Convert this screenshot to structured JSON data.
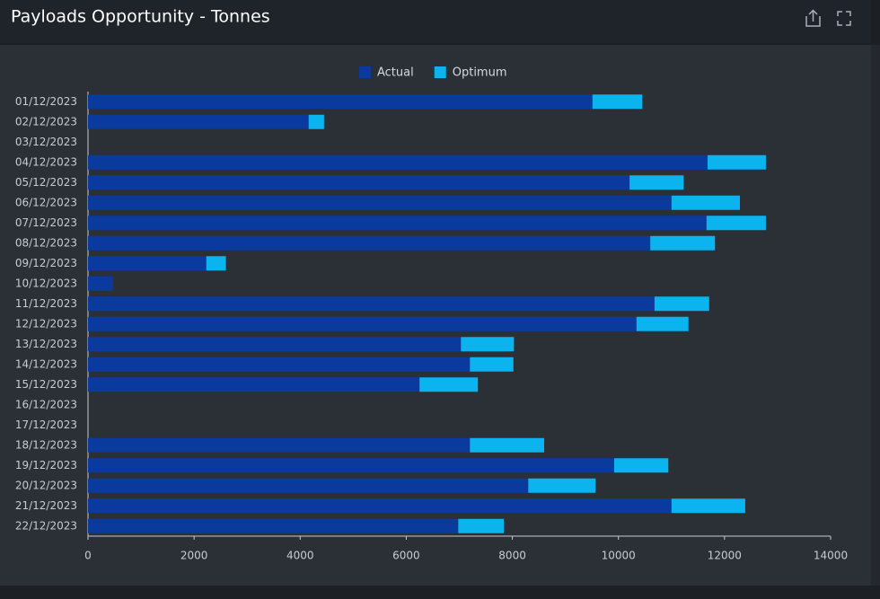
{
  "header": {
    "title": "Payloads Opportunity - Tonnes"
  },
  "chart_data": {
    "type": "bar",
    "orientation": "horizontal",
    "stacked": true,
    "categories": [
      "01/12/2023",
      "02/12/2023",
      "03/12/2023",
      "04/12/2023",
      "05/12/2023",
      "06/12/2023",
      "07/12/2023",
      "08/12/2023",
      "09/12/2023",
      "10/12/2023",
      "11/12/2023",
      "12/12/2023",
      "13/12/2023",
      "14/12/2023",
      "15/12/2023",
      "16/12/2023",
      "17/12/2023",
      "18/12/2023",
      "19/12/2023",
      "20/12/2023",
      "21/12/2023",
      "22/12/2023"
    ],
    "series": [
      {
        "name": "Actual",
        "color": "#0a3a9e",
        "values": [
          9510,
          4160,
          0,
          11680,
          10210,
          11000,
          11660,
          10600,
          2230,
          470,
          10680,
          10340,
          7030,
          7200,
          6250,
          0,
          0,
          7200,
          9920,
          8300,
          11000,
          6980
        ]
      },
      {
        "name": "Optimum",
        "color": "#0bb4ef",
        "values": [
          940,
          290,
          0,
          1100,
          1020,
          1290,
          1120,
          1220,
          370,
          0,
          1030,
          980,
          1000,
          820,
          1100,
          0,
          0,
          1400,
          1020,
          1270,
          1390,
          860
        ]
      }
    ],
    "xlim": [
      0,
      14000
    ],
    "xticks": [
      0,
      2000,
      4000,
      6000,
      8000,
      10000,
      12000,
      14000
    ],
    "grid": false,
    "legend": "top"
  }
}
